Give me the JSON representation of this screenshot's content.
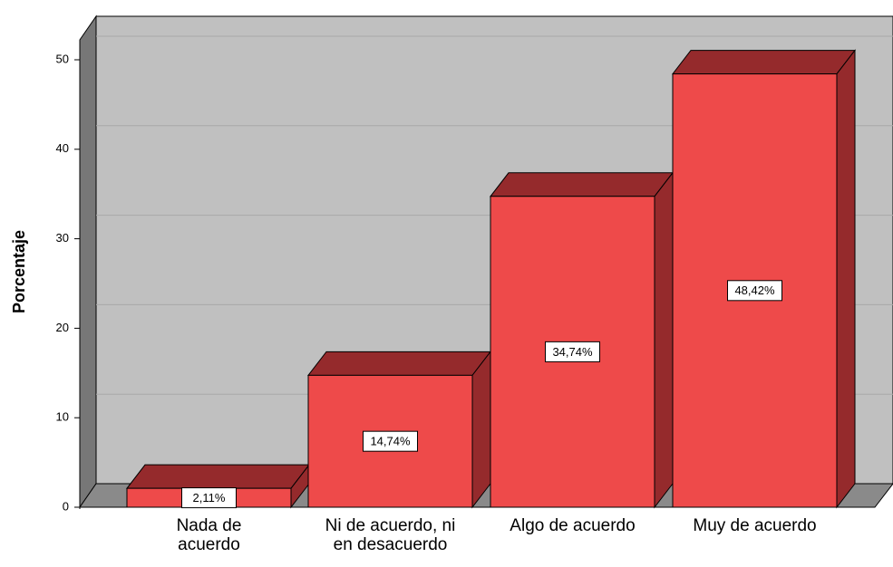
{
  "chart_data": {
    "type": "bar3d",
    "y_label": "Porcentaje",
    "categories": [
      "Nada de\nacuerdo",
      "Ni de acuerdo, ni\nen desacuerdo",
      "Algo de acuerdo",
      "Muy de acuerdo"
    ],
    "values": [
      2.11,
      14.74,
      34.74,
      48.42
    ],
    "value_labels": [
      "2,11%",
      "14,74%",
      "34,74%",
      "48,42%"
    ],
    "color": "#ee4a4a",
    "side_color": "#952a2c",
    "ylim": [
      0,
      52
    ],
    "yticks": [
      0,
      10,
      20,
      30,
      40,
      50
    ],
    "grid": true
  }
}
